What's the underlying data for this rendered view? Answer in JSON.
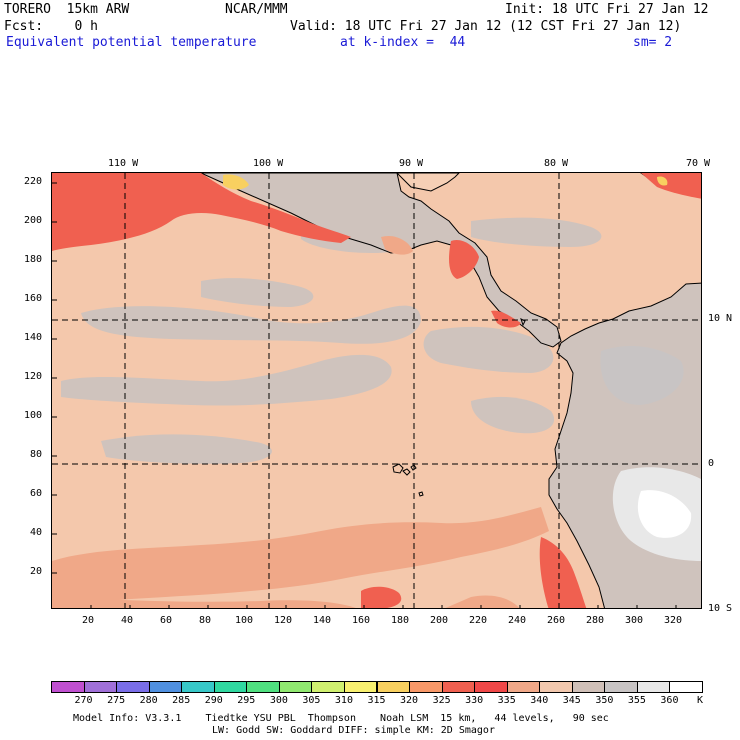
{
  "header": {
    "model": "TORERO  15km ARW",
    "org": "NCAR/MMM",
    "init": "Init: 18 UTC Fri 27 Jan 12",
    "fcst": "Fcst:    0 h",
    "valid": "Valid: 18 UTC Fri 27 Jan 12 (12 CST Fri 27 Jan 12)",
    "field": "Equivalent potential temperature",
    "level": "at k-index =  44",
    "smooth": "sm= 2"
  },
  "map": {
    "top_lon_labels": [
      "110 W",
      "100 W",
      "90 W",
      "80 W",
      "70 W"
    ],
    "right_lat_labels": [
      "10 N",
      "0",
      "10 S"
    ],
    "y_grid_labels": [
      "220",
      "200",
      "180",
      "160",
      "140",
      "120",
      "100",
      "80",
      "60",
      "40",
      "20"
    ],
    "x_grid_labels": [
      "20",
      "40",
      "60",
      "80",
      "100",
      "120",
      "140",
      "160",
      "180",
      "200",
      "220",
      "240",
      "260",
      "280",
      "300",
      "320"
    ],
    "ocean_color": "#f4c8ac",
    "land_color": "#cfc3bd"
  },
  "colorbar": {
    "levels": [
      "270",
      "275",
      "280",
      "285",
      "290",
      "295",
      "300",
      "305",
      "310",
      "315",
      "320",
      "325",
      "330",
      "335",
      "340",
      "345",
      "350",
      "355",
      "360"
    ],
    "unit": "K",
    "colors": [
      "#c050d0",
      "#a070d8",
      "#7a6ee8",
      "#5090e0",
      "#38c8c8",
      "#30d8a0",
      "#50e080",
      "#90e870",
      "#d0f070",
      "#f8f070",
      "#f8d060",
      "#f89868",
      "#f06050",
      "#f04848",
      "#f0a888",
      "#f2c8ae",
      "#d0c0b8",
      "#c8c4c4",
      "#e8e8e8",
      "#ffffff"
    ]
  },
  "footer": {
    "line1": "Model Info: V3.3.1    Tiedtke YSU PBL  Thompson    Noah LSM  15 km,   44 levels,   90 sec",
    "line2": "LW: Godd SW: Goddard DIFF: simple KM: 2D Smagor"
  }
}
